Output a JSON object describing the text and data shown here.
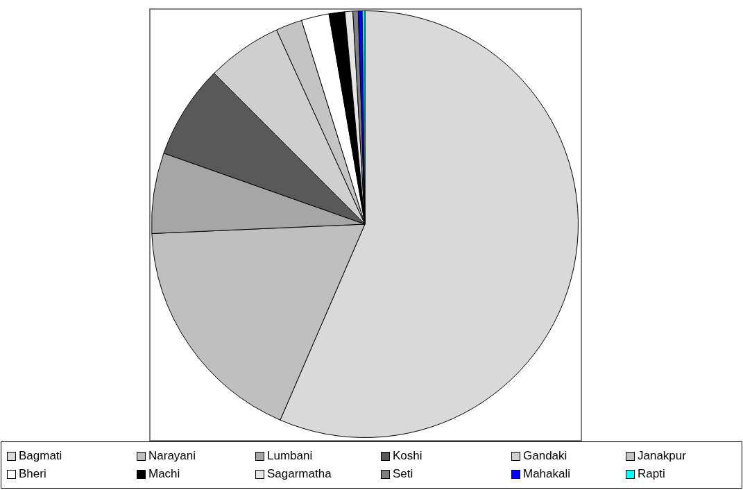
{
  "chart_data": {
    "type": "pie",
    "categories": [
      "Bagmati",
      "Narayani",
      "Lumbani",
      "Koshi",
      "Gandaki",
      "Janakpur",
      "Bheri",
      "Machi",
      "Sagarmatha",
      "Seti",
      "Mahakali",
      "Rapti"
    ],
    "values": [
      56.5,
      17.8,
      6.1,
      7.1,
      5.7,
      2.0,
      2.1,
      1.2,
      0.6,
      0.4,
      0.3,
      0.2
    ],
    "colors": [
      "#d9d9d9",
      "#bfbfbf",
      "#a6a6a6",
      "#595959",
      "#cfcfcf",
      "#c4c4c4",
      "#ffffff",
      "#000000",
      "#e6e6e6",
      "#808080",
      "#0000ff",
      "#00ffff"
    ],
    "legend": "bottom"
  }
}
